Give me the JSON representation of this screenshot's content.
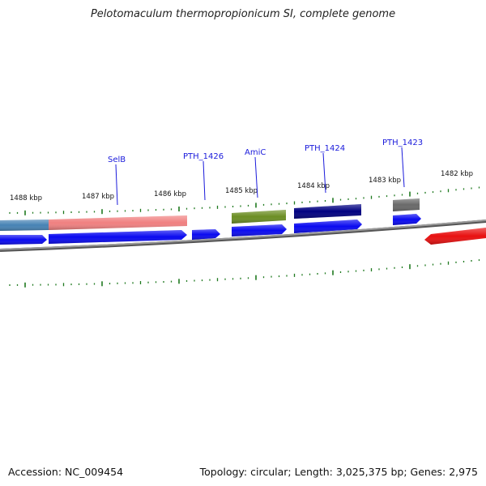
{
  "title": "Pelotomaculum thermopropionicum SI, complete genome",
  "footer": {
    "accession": "Accession: NC_009454",
    "genome_info": "Topology: circular; Length: 3,025,375 bp; Genes: 2,975"
  },
  "kbp_labels": [
    "1488 kbp",
    "1487 kbp",
    "1486 kbp",
    "1485 kbp",
    "1484 kbp",
    "1483 kbp",
    "1482 kbp"
  ],
  "gene_labels": [
    "SelB",
    "PTH_1426",
    "AmiC",
    "PTH_1424",
    "PTH_1423"
  ],
  "colors": {
    "backbone": "#888888",
    "cds_arrow": "#0a0af0",
    "reverse_arrow": "#e81010",
    "tick": "#1f7a1f",
    "label_line": "#1a1adb",
    "feature_steelblue": "#4682b4",
    "feature_pink": "#f08080",
    "feature_olive": "#6b8e23",
    "feature_navy": "#000080",
    "feature_gray": "#696969"
  }
}
